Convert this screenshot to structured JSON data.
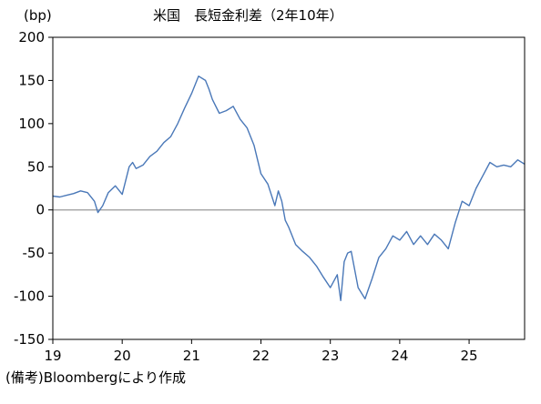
{
  "chart_data": {
    "type": "line",
    "title": "米国　長短金利差（2年10年）",
    "ylabel": "(bp)",
    "xlabel": "",
    "y_ticks": [
      200,
      150,
      100,
      50,
      0,
      -50,
      -100,
      -150
    ],
    "x_ticks": [
      "19",
      "20",
      "21",
      "22",
      "23",
      "24",
      "25"
    ],
    "ylim": [
      -150,
      200
    ],
    "xlim": [
      19,
      25.8
    ],
    "grid": false,
    "legend": "none",
    "line_color": "#4a78b8",
    "zero_line_color": "#9a9a9a",
    "series": [
      {
        "x": [
          19.0,
          19.1,
          19.2,
          19.3,
          19.4,
          19.5,
          19.6,
          19.65,
          19.72,
          19.8,
          19.9,
          20.0,
          20.1,
          20.15,
          20.2,
          20.3,
          20.4,
          20.5,
          20.6,
          20.7,
          20.8,
          20.9,
          21.0,
          21.1,
          21.2,
          21.25,
          21.3,
          21.4,
          21.5,
          21.6,
          21.7,
          21.8,
          21.9,
          22.0,
          22.1,
          22.2,
          22.25,
          22.3,
          22.35,
          22.4,
          22.5,
          22.6,
          22.7,
          22.8,
          22.9,
          23.0,
          23.1,
          23.15,
          23.2,
          23.25,
          23.3,
          23.4,
          23.5,
          23.6,
          23.7,
          23.8,
          23.9,
          24.0,
          24.1,
          24.2,
          24.3,
          24.4,
          24.5,
          24.6,
          24.7,
          24.8,
          24.9,
          25.0,
          25.1,
          25.2,
          25.3,
          25.4,
          25.5,
          25.6,
          25.7,
          25.8
        ],
        "y": [
          16,
          15,
          17,
          19,
          22,
          20,
          10,
          -3,
          5,
          20,
          28,
          18,
          50,
          55,
          48,
          52,
          62,
          68,
          78,
          85,
          100,
          118,
          135,
          155,
          150,
          140,
          128,
          112,
          115,
          120,
          105,
          95,
          75,
          42,
          30,
          5,
          22,
          10,
          -12,
          -20,
          -40,
          -48,
          -55,
          -65,
          -78,
          -90,
          -75,
          -105,
          -60,
          -50,
          -48,
          -90,
          -103,
          -80,
          -55,
          -45,
          -30,
          -35,
          -25,
          -40,
          -30,
          -40,
          -28,
          -35,
          -45,
          -15,
          10,
          5,
          25,
          40,
          55,
          50,
          52,
          50,
          58,
          53
        ]
      }
    ]
  },
  "source_note": "(備考)Bloombergにより作成"
}
